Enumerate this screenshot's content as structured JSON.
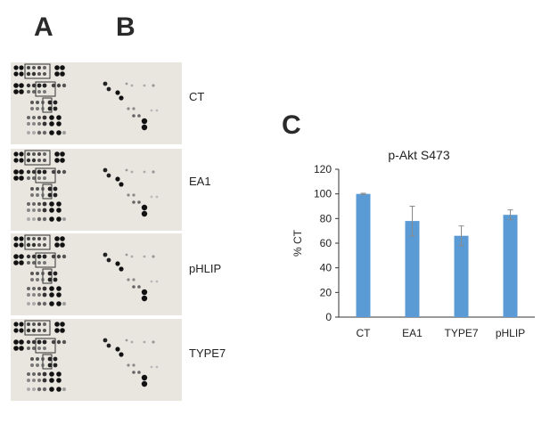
{
  "panels": {
    "a_label": "A",
    "b_label": "B",
    "c_label": "C"
  },
  "blots": [
    {
      "label": "CT"
    },
    {
      "label": "EA1"
    },
    {
      "label": "pHLIP"
    },
    {
      "label": "TYPE7"
    }
  ],
  "chart_data": {
    "type": "bar",
    "title": "p-Akt S473",
    "xlabel": "",
    "ylabel": "% CT",
    "categories": [
      "CT",
      "EA1",
      "TYPE7",
      "pHLIP"
    ],
    "values": [
      100,
      78,
      66,
      83
    ],
    "errors": [
      0.5,
      12,
      8,
      4
    ],
    "ylim": [
      0,
      120
    ],
    "yticks": [
      0,
      20,
      40,
      60,
      80,
      100,
      120
    ],
    "grid": false,
    "bar_color": "#5b9bd5",
    "error_color": "#8a8a8a"
  }
}
